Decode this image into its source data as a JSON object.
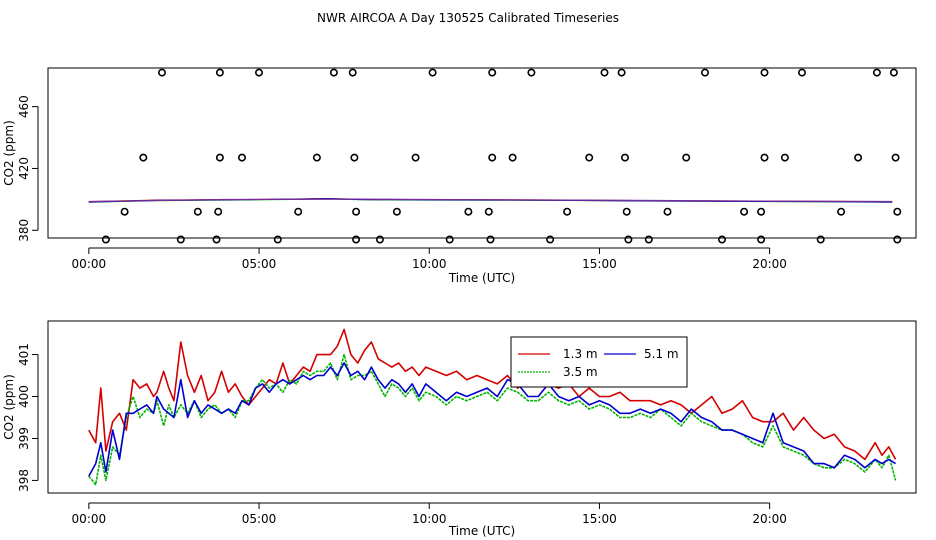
{
  "title": "NWR AIRCOA A  Day 130525  Calibrated Timeseries",
  "chart_data": [
    {
      "type": "scatter",
      "xlabel": "Time (UTC)",
      "ylabel": "CO2 (ppm)",
      "xlim": [
        -1.2,
        24.3
      ],
      "ylim": [
        375,
        485
      ],
      "xticks": [
        0,
        5,
        10,
        15,
        20
      ],
      "xtick_labels": [
        "00:00",
        "05:00",
        "10:00",
        "15:00",
        "20:00"
      ],
      "yticks": [
        380,
        420,
        460
      ],
      "ytick_labels": [
        "380",
        "420",
        "460"
      ],
      "grid": false,
      "flat_series": [
        {
          "name": "1.3 m",
          "color": "#d40000",
          "x": [
            0,
            2,
            4,
            6,
            7,
            8,
            10,
            12,
            14,
            16,
            18,
            20,
            22,
            23.6
          ],
          "y": [
            398.5,
            399.5,
            399.8,
            400.2,
            400.5,
            400,
            399.8,
            399.7,
            399.5,
            399.2,
            399,
            398.8,
            398.6,
            398.4
          ]
        },
        {
          "name": "3.5 m",
          "color": "#00b400",
          "x": [
            0,
            2,
            4,
            6,
            7,
            8,
            10,
            12,
            14,
            16,
            18,
            20,
            22,
            23.6
          ],
          "y": [
            398.2,
            399.2,
            399.6,
            400,
            400.3,
            399.8,
            399.6,
            399.5,
            399.3,
            399,
            398.8,
            398.6,
            398.4,
            398.2
          ]
        },
        {
          "name": "5.1 m",
          "color": "#0000d0",
          "x": [
            0,
            2,
            4,
            6,
            7,
            8,
            10,
            12,
            14,
            16,
            18,
            20,
            22,
            23.6
          ],
          "y": [
            398.3,
            399.3,
            399.7,
            400.1,
            400.4,
            399.9,
            399.7,
            399.6,
            399.4,
            399.1,
            398.9,
            398.7,
            398.5,
            398.3
          ]
        },
        {
          "name": "",
          "color": "#7a2a9a",
          "x": [
            0,
            4,
            8,
            12,
            16,
            20,
            23.6
          ],
          "y": [
            398.6,
            399.9,
            400.1,
            399.7,
            399.3,
            398.9,
            398.6
          ]
        }
      ],
      "circles": [
        {
          "x": 2.15,
          "y": 482
        },
        {
          "x": 3.85,
          "y": 482
        },
        {
          "x": 5.0,
          "y": 482
        },
        {
          "x": 7.2,
          "y": 482
        },
        {
          "x": 7.75,
          "y": 482
        },
        {
          "x": 10.1,
          "y": 482
        },
        {
          "x": 11.85,
          "y": 482
        },
        {
          "x": 13.0,
          "y": 482
        },
        {
          "x": 15.15,
          "y": 482
        },
        {
          "x": 15.65,
          "y": 482
        },
        {
          "x": 18.1,
          "y": 482
        },
        {
          "x": 19.85,
          "y": 482
        },
        {
          "x": 20.95,
          "y": 482
        },
        {
          "x": 23.15,
          "y": 482
        },
        {
          "x": 23.65,
          "y": 482
        },
        {
          "x": 1.6,
          "y": 427
        },
        {
          "x": 3.85,
          "y": 427
        },
        {
          "x": 4.5,
          "y": 427
        },
        {
          "x": 6.7,
          "y": 427
        },
        {
          "x": 7.8,
          "y": 427
        },
        {
          "x": 9.6,
          "y": 427
        },
        {
          "x": 11.85,
          "y": 427
        },
        {
          "x": 12.45,
          "y": 427
        },
        {
          "x": 14.7,
          "y": 427
        },
        {
          "x": 15.75,
          "y": 427
        },
        {
          "x": 17.55,
          "y": 427
        },
        {
          "x": 19.85,
          "y": 427
        },
        {
          "x": 20.45,
          "y": 427
        },
        {
          "x": 22.6,
          "y": 427
        },
        {
          "x": 23.7,
          "y": 427
        },
        {
          "x": 1.05,
          "y": 392
        },
        {
          "x": 3.2,
          "y": 392
        },
        {
          "x": 3.8,
          "y": 392
        },
        {
          "x": 6.15,
          "y": 392
        },
        {
          "x": 7.85,
          "y": 392
        },
        {
          "x": 9.05,
          "y": 392
        },
        {
          "x": 11.15,
          "y": 392
        },
        {
          "x": 11.75,
          "y": 392
        },
        {
          "x": 14.05,
          "y": 392
        },
        {
          "x": 15.8,
          "y": 392
        },
        {
          "x": 17.0,
          "y": 392
        },
        {
          "x": 19.25,
          "y": 392
        },
        {
          "x": 19.75,
          "y": 392
        },
        {
          "x": 22.1,
          "y": 392
        },
        {
          "x": 23.75,
          "y": 392
        },
        {
          "x": 0.5,
          "y": 374
        },
        {
          "x": 2.7,
          "y": 374
        },
        {
          "x": 3.75,
          "y": 374
        },
        {
          "x": 5.55,
          "y": 374
        },
        {
          "x": 7.85,
          "y": 374
        },
        {
          "x": 8.55,
          "y": 374
        },
        {
          "x": 10.6,
          "y": 374
        },
        {
          "x": 11.8,
          "y": 374
        },
        {
          "x": 13.55,
          "y": 374
        },
        {
          "x": 15.85,
          "y": 374
        },
        {
          "x": 16.45,
          "y": 374
        },
        {
          "x": 18.6,
          "y": 374
        },
        {
          "x": 19.75,
          "y": 374
        },
        {
          "x": 21.5,
          "y": 374
        },
        {
          "x": 23.75,
          "y": 374
        }
      ]
    },
    {
      "type": "line",
      "xlabel": "Time (UTC)",
      "ylabel": "CO2 (ppm)",
      "xlim": [
        -1.2,
        24.3
      ],
      "ylim": [
        397.7,
        401.8
      ],
      "xticks": [
        0,
        5,
        10,
        15,
        20
      ],
      "xtick_labels": [
        "00:00",
        "05:00",
        "10:00",
        "15:00",
        "20:00"
      ],
      "yticks": [
        398,
        399,
        400,
        401
      ],
      "ytick_labels": [
        "398",
        "399",
        "400",
        "401"
      ],
      "grid": false,
      "legend": "top-center",
      "series": [
        {
          "name": "1.3 m",
          "color": "#d40000",
          "x": [
            0.0,
            0.2,
            0.35,
            0.5,
            0.7,
            0.9,
            1.1,
            1.3,
            1.5,
            1.7,
            1.9,
            2.0,
            2.2,
            2.35,
            2.5,
            2.7,
            2.9,
            3.1,
            3.3,
            3.5,
            3.7,
            3.9,
            4.1,
            4.3,
            4.5,
            4.7,
            4.9,
            5.1,
            5.3,
            5.5,
            5.7,
            5.9,
            6.1,
            6.3,
            6.5,
            6.7,
            6.9,
            7.1,
            7.3,
            7.5,
            7.7,
            7.9,
            8.1,
            8.3,
            8.5,
            8.7,
            8.9,
            9.1,
            9.3,
            9.5,
            9.7,
            9.9,
            10.2,
            10.5,
            10.8,
            11.1,
            11.4,
            11.7,
            12.0,
            12.3,
            12.6,
            12.9,
            13.2,
            13.5,
            13.8,
            14.1,
            14.4,
            14.7,
            15.0,
            15.3,
            15.6,
            15.9,
            16.2,
            16.5,
            16.8,
            17.1,
            17.4,
            17.7,
            18.0,
            18.3,
            18.6,
            18.9,
            19.2,
            19.5,
            19.8,
            20.1,
            20.4,
            20.7,
            21.0,
            21.3,
            21.6,
            21.9,
            22.2,
            22.5,
            22.8,
            23.1,
            23.3,
            23.5,
            23.7
          ],
          "y": [
            399.2,
            398.9,
            400.2,
            398.7,
            399.4,
            399.6,
            399.2,
            400.4,
            400.2,
            400.3,
            400.0,
            400.1,
            400.6,
            400.2,
            399.9,
            401.3,
            400.5,
            400.1,
            400.5,
            399.9,
            400.1,
            400.6,
            400.1,
            400.3,
            400.0,
            399.8,
            400.0,
            400.2,
            400.4,
            400.3,
            400.8,
            400.3,
            400.5,
            400.7,
            400.6,
            401.0,
            401.0,
            401.0,
            401.2,
            401.6,
            401.0,
            400.8,
            401.1,
            401.3,
            400.9,
            400.8,
            400.7,
            400.8,
            400.6,
            400.7,
            400.5,
            400.7,
            400.6,
            400.5,
            400.6,
            400.4,
            400.5,
            400.4,
            400.3,
            400.5,
            400.2,
            400.4,
            400.8,
            400.3,
            400.2,
            400.3,
            400.0,
            400.2,
            400.0,
            400.0,
            400.1,
            399.9,
            399.9,
            399.9,
            399.8,
            399.9,
            399.8,
            399.6,
            399.8,
            400.0,
            399.6,
            399.7,
            399.9,
            399.5,
            399.4,
            399.4,
            399.6,
            399.2,
            399.5,
            399.2,
            399.0,
            399.1,
            398.8,
            398.7,
            398.5,
            398.9,
            398.6,
            398.8,
            398.5
          ]
        },
        {
          "name": "3.5 m",
          "color": "#00b400",
          "x": [
            0.0,
            0.2,
            0.35,
            0.5,
            0.7,
            0.9,
            1.1,
            1.3,
            1.5,
            1.7,
            1.9,
            2.0,
            2.2,
            2.35,
            2.5,
            2.7,
            2.9,
            3.1,
            3.3,
            3.5,
            3.7,
            3.9,
            4.1,
            4.3,
            4.5,
            4.7,
            4.9,
            5.1,
            5.3,
            5.5,
            5.7,
            5.9,
            6.1,
            6.3,
            6.5,
            6.7,
            6.9,
            7.1,
            7.3,
            7.5,
            7.7,
            7.9,
            8.1,
            8.3,
            8.5,
            8.7,
            8.9,
            9.1,
            9.3,
            9.5,
            9.7,
            9.9,
            10.2,
            10.5,
            10.8,
            11.1,
            11.4,
            11.7,
            12.0,
            12.3,
            12.6,
            12.9,
            13.2,
            13.5,
            13.8,
            14.1,
            14.4,
            14.7,
            15.0,
            15.3,
            15.6,
            15.9,
            16.2,
            16.5,
            16.8,
            17.1,
            17.4,
            17.7,
            18.0,
            18.3,
            18.6,
            18.9,
            19.2,
            19.5,
            19.8,
            20.1,
            20.4,
            20.7,
            21.0,
            21.3,
            21.6,
            21.9,
            22.2,
            22.5,
            22.8,
            23.1,
            23.3,
            23.5,
            23.7
          ],
          "y": [
            398.1,
            397.9,
            398.6,
            398.0,
            398.8,
            398.6,
            399.5,
            400.0,
            399.5,
            399.7,
            399.6,
            399.9,
            399.3,
            399.8,
            399.5,
            399.8,
            399.6,
            399.9,
            399.5,
            399.7,
            399.8,
            399.6,
            399.7,
            399.5,
            399.9,
            399.9,
            400.2,
            400.4,
            400.2,
            400.3,
            400.1,
            400.4,
            400.3,
            400.6,
            400.5,
            400.6,
            400.6,
            400.8,
            400.4,
            401.0,
            400.4,
            400.5,
            400.5,
            400.6,
            400.3,
            400.0,
            400.3,
            400.2,
            400.0,
            400.2,
            399.9,
            400.1,
            400.0,
            399.8,
            400.0,
            399.9,
            400.0,
            400.1,
            399.9,
            400.2,
            400.1,
            399.9,
            399.9,
            400.1,
            399.9,
            399.8,
            399.9,
            399.7,
            399.8,
            399.7,
            399.5,
            399.5,
            399.6,
            399.5,
            399.7,
            399.5,
            399.3,
            399.6,
            399.4,
            399.3,
            399.2,
            399.2,
            399.1,
            398.9,
            398.8,
            399.3,
            398.8,
            398.7,
            398.6,
            398.4,
            398.3,
            398.3,
            398.5,
            398.4,
            398.2,
            398.5,
            398.3,
            398.6,
            398.0
          ]
        },
        {
          "name": "5.1 m",
          "color": "#0000d0",
          "x": [
            0.0,
            0.2,
            0.35,
            0.5,
            0.7,
            0.9,
            1.1,
            1.3,
            1.5,
            1.7,
            1.9,
            2.0,
            2.2,
            2.35,
            2.5,
            2.7,
            2.9,
            3.1,
            3.3,
            3.5,
            3.7,
            3.9,
            4.1,
            4.3,
            4.5,
            4.7,
            4.9,
            5.1,
            5.3,
            5.5,
            5.7,
            5.9,
            6.1,
            6.3,
            6.5,
            6.7,
            6.9,
            7.1,
            7.3,
            7.5,
            7.7,
            7.9,
            8.1,
            8.3,
            8.5,
            8.7,
            8.9,
            9.1,
            9.3,
            9.5,
            9.7,
            9.9,
            10.2,
            10.5,
            10.8,
            11.1,
            11.4,
            11.7,
            12.0,
            12.3,
            12.6,
            12.9,
            13.2,
            13.5,
            13.8,
            14.1,
            14.4,
            14.7,
            15.0,
            15.3,
            15.6,
            15.9,
            16.2,
            16.5,
            16.8,
            17.1,
            17.4,
            17.7,
            18.0,
            18.3,
            18.6,
            18.9,
            19.2,
            19.5,
            19.8,
            20.1,
            20.4,
            20.7,
            21.0,
            21.3,
            21.6,
            21.9,
            22.2,
            22.5,
            22.8,
            23.1,
            23.3,
            23.5,
            23.7
          ],
          "y": [
            398.1,
            398.4,
            398.9,
            398.2,
            399.2,
            398.5,
            399.6,
            399.6,
            399.7,
            399.8,
            399.6,
            400.0,
            399.7,
            399.6,
            399.5,
            400.4,
            399.5,
            399.9,
            399.6,
            399.8,
            399.7,
            399.6,
            399.7,
            399.6,
            399.9,
            399.8,
            400.2,
            400.3,
            400.1,
            400.3,
            400.4,
            400.3,
            400.4,
            400.5,
            400.4,
            400.5,
            400.5,
            400.7,
            400.5,
            400.8,
            400.5,
            400.6,
            400.4,
            400.7,
            400.4,
            400.2,
            400.4,
            400.3,
            400.1,
            400.3,
            400.0,
            400.3,
            400.1,
            399.9,
            400.1,
            400.0,
            400.1,
            400.2,
            400.0,
            400.4,
            400.3,
            400.0,
            400.0,
            400.3,
            400.0,
            399.9,
            400.0,
            399.8,
            399.9,
            399.8,
            399.6,
            399.6,
            399.7,
            399.6,
            399.7,
            399.6,
            399.4,
            399.7,
            399.5,
            399.4,
            399.2,
            399.2,
            399.1,
            399.0,
            398.9,
            399.6,
            398.9,
            398.8,
            398.7,
            398.4,
            398.4,
            398.3,
            398.6,
            398.5,
            398.3,
            398.5,
            398.4,
            398.5,
            398.4
          ]
        }
      ]
    }
  ]
}
